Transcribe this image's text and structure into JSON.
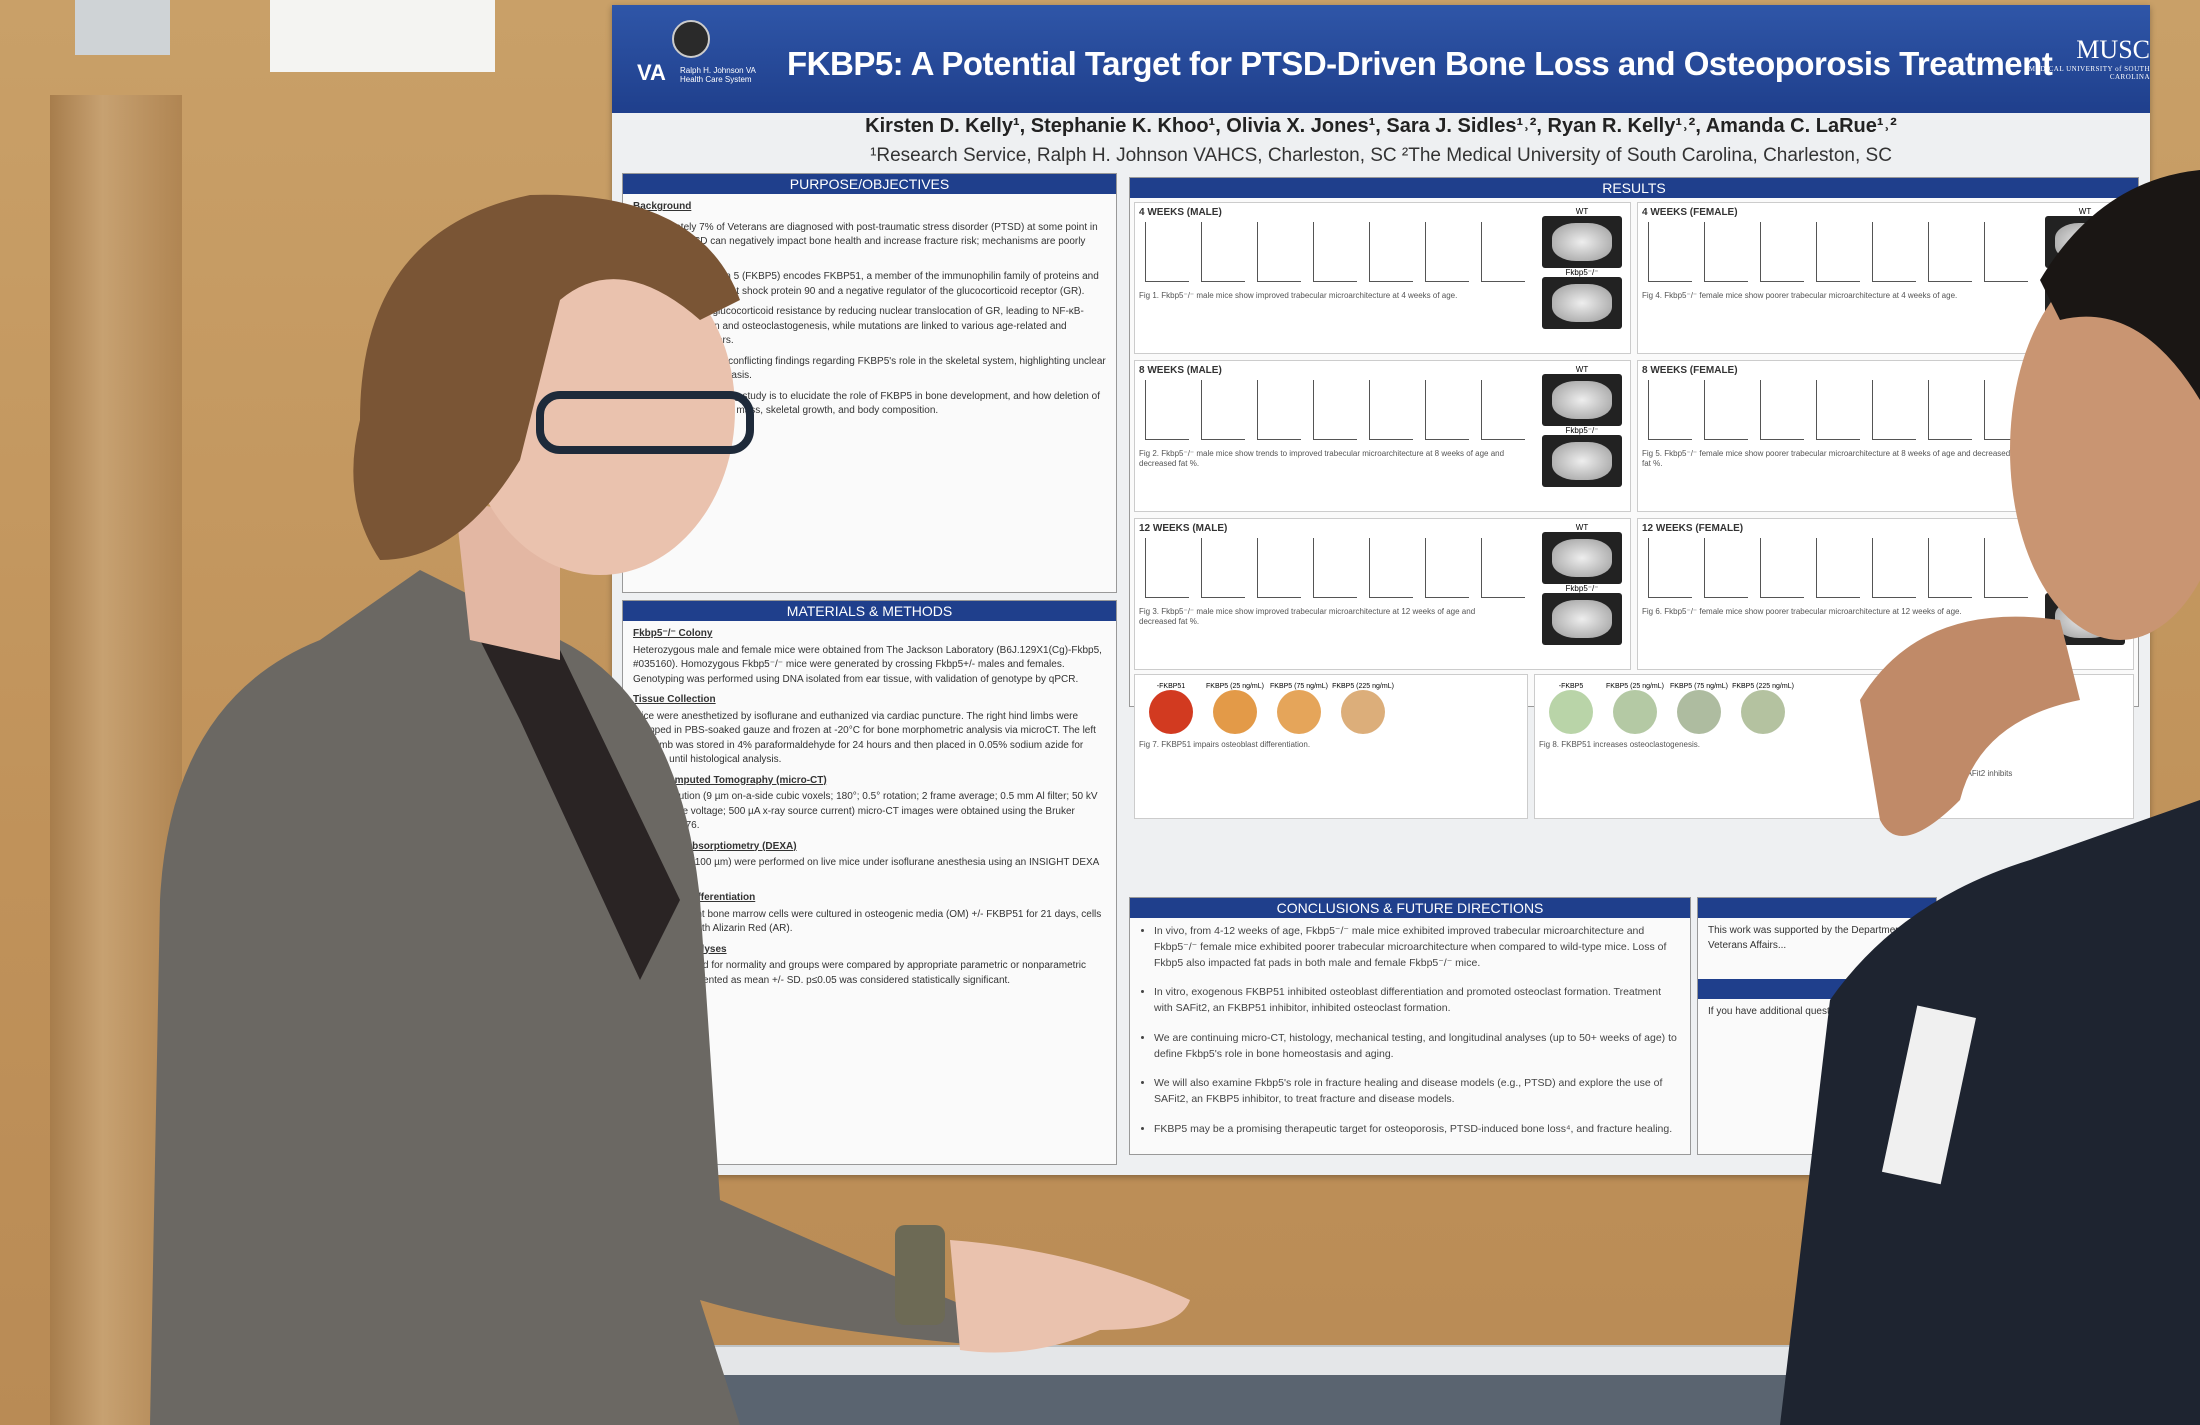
{
  "poster": {
    "title": "FKBP5: A Potential Target for PTSD-Driven Bone Loss and Osteoporosis Treatment",
    "left_logo": {
      "text": "VA",
      "subtext": "Ralph H. Johnson VA Health Care System"
    },
    "right_logo": {
      "text": "MUSC",
      "subtext": "MEDICAL UNIVERSITY of SOUTH CAROLINA"
    },
    "authors": "Kirsten D. Kelly¹, Stephanie K. Khoo¹, Olivia X. Jones¹, Sara J. Sidles¹˒², Ryan R. Kelly¹˒², Amanda C. LaRue¹˒²",
    "affiliations": "¹Research Service, Ralph H. Johnson VAHCS, Charleston, SC ²The Medical University of South Carolina, Charleston, SC",
    "sections": {
      "purpose": {
        "heading": "PURPOSE/OBJECTIVES",
        "subheading": "Background",
        "paragraphs": [
          "Approximately 7% of Veterans are diagnosed with post-traumatic stress disorder (PTSD) at some point in their lives. PTSD can negatively impact bone health and increase fracture risk; mechanisms are poorly understood.",
          "FK506 binding protein 5 (FKBP5) encodes FKBP51, a member of the immunophilin family of proteins and a co-chaperone for heat shock protein 90 and a negative regulator of the glucocorticoid receptor (GR).",
          "FKBP51 promote glucocorticoid resistance by reducing nuclear translocation of GR, leading to NF-κB-driven inflammation and osteoclastogenesis, while mutations are linked to various age-related and neurological disorders.",
          "Studies have yielded conflicting findings regarding FKBP5's role in the skeletal system, highlighting unclear roles in bone homeostasis.",
          "The goal of this ongoing study is to elucidate the role of FKBP5 in bone development, and how deletion of Fkbp5 influences bone mass, skeletal growth, and body composition."
        ]
      },
      "methods": {
        "heading": "MATERIALS & METHODS",
        "items": [
          {
            "title": "Fkbp5⁻/⁻ Colony",
            "text": "Heterozygous male and female mice were obtained from The Jackson Laboratory (B6J.129X1(Cg)-Fkbp5, #035160). Homozygous Fkbp5⁻/⁻ mice were generated by crossing Fkbp5+/- males and females. Genotyping was performed using DNA isolated from ear tissue, with validation of genotype by qPCR."
          },
          {
            "title": "Tissue Collection",
            "text": "Mice were anesthetized by isoflurane and euthanized via cardiac puncture. The right hind limbs were wrapped in PBS-soaked gauze and frozen at -20°C for bone morphometric analysis via microCT. The left hind limb was stored in 4% paraformaldehyde for 24 hours and then placed in 0.05% sodium azide for storage until histological analysis."
          },
          {
            "title": "Micro-computed Tomography (micro-CT)",
            "text": "High-resolution (9 µm on-a-side cubic voxels; 180°; 0.5° rotation; 2 frame average; 0.5 mm Al filter; 50 kV x-ray source voltage; 500 µA x-ray source current) micro-CT images were obtained using the Bruker SkyScan 1176."
          },
          {
            "title": "Dual X-ray Absorptiometry (DEXA)",
            "text": "DEXA scans (100 µm) were performed on live mice under isoflurane anesthesia using an INSIGHT DEXA scanner."
          },
          {
            "title": "Osteoblast Differentiation",
            "text": "Plastic adherent bone marrow cells were cultured in osteogenic media (OM) +/- FKBP51 for 21 days, cells were stained with Alizarin Red (AR)."
          },
          {
            "title": "Statistical Analyses",
            "text": "Data were tested for normality and groups were compared by appropriate parametric or nonparametric tests. Data presented as mean +/- SD. p≤0.05 was considered statistically significant."
          }
        ]
      },
      "results": {
        "heading": "RESULTS",
        "panels": [
          {
            "label": "4 WEEKS (MALE)",
            "caption": "Fig 1. Fkbp5⁻/⁻ male mice show improved trabecular microarchitecture at 4 weeks of age."
          },
          {
            "label": "4 WEEKS (FEMALE)",
            "caption": "Fig 4. Fkbp5⁻/⁻ female mice show poorer trabecular microarchitecture at 4 weeks of age."
          },
          {
            "label": "8 WEEKS (MALE)",
            "caption": "Fig 2. Fkbp5⁻/⁻ male mice show trends to improved trabecular microarchitecture at 8 weeks of age and decreased fat %."
          },
          {
            "label": "8 WEEKS (FEMALE)",
            "caption": "Fig 5. Fkbp5⁻/⁻ female mice show poorer trabecular microarchitecture at 8 weeks of age and decreased fat %."
          },
          {
            "label": "12 WEEKS (MALE)",
            "caption": "Fig 3. Fkbp5⁻/⁻ male mice show improved trabecular microarchitecture at 12 weeks of age and decreased fat %."
          },
          {
            "label": "12 WEEKS (FEMALE)",
            "caption": "Fig 6. Fkbp5⁻/⁻ female mice show poorer trabecular microarchitecture at 12 weeks of age."
          }
        ],
        "wt_label": "WT",
        "ko_label": "Fkbp5⁻/⁻",
        "fig7": {
          "labels": [
            "-FKBP51",
            "FKBP5 (25 ng/mL)",
            "FKBP5 (75 ng/mL)",
            "FKBP5 (225 ng/mL)"
          ],
          "caption": "Fig 7. FKBP51 impairs osteoblast differentiation."
        },
        "fig8": {
          "labels": [
            "-FKBP5",
            "FKBP5 (25 ng/mL)",
            "FKBP5 (75 ng/mL)",
            "FKBP5 (225 ng/mL)"
          ],
          "caption": "Fig 8. FKBP51 increases osteoclastogenesis."
        },
        "fig9": {
          "caption": "Fig 9. SAFit2 inhibits"
        }
      },
      "conclusions": {
        "heading": "CONCLUSIONS & FUTURE DIRECTIONS",
        "bullets": [
          "In vivo, from 4-12 weeks of age, Fkbp5⁻/⁻ male mice exhibited improved trabecular microarchitecture and Fkbp5⁻/⁻ female mice exhibited poorer trabecular microarchitecture when compared to wild-type mice. Loss of Fkbp5 also impacted fat pads in both male and female Fkbp5⁻/⁻ mice.",
          "In vitro, exogenous FKBP51 inhibited osteoblast differentiation and promoted osteoclast formation. Treatment with SAFit2, an FKBP51 inhibitor, inhibited osteoclast formation.",
          "We are continuing micro-CT, histology, mechanical testing, and longitudinal analyses (up to 50+ weeks of age) to define Fkbp5's role in bone homeostasis and aging.",
          "We will also examine Fkbp5's role in fracture healing and disease models (e.g., PTSD) and explore the use of SAFit2, an FKBP5 inhibitor, to treat fracture and disease models.",
          "FKBP5 may be a promising therapeutic target for osteoporosis, PTSD-induced bone loss⁴, and fracture healing."
        ]
      },
      "acknowledgements": {
        "text": "This work was supported by the Department of Veterans Affairs..."
      },
      "contact": {
        "text": "If you have additional questions..."
      }
    }
  },
  "colors": {
    "poster_blue": "#1f3f8c",
    "corkboard": "#c59a63",
    "blazer": "#6b6863"
  }
}
